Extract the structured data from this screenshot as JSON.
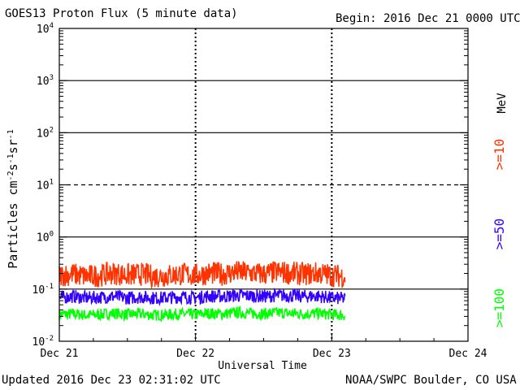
{
  "title": "GOES13 Proton Flux (5 minute data)",
  "begin_label": "Begin: 2016 Dec 21 0000 UTC",
  "updated_label": "Updated 2016 Dec 23 02:31:02 UTC",
  "credit_label": "NOAA/SWPC Boulder, CO USA",
  "colors": {
    "p10": "#ff3300",
    "p50": "#3300ff",
    "p100": "#00ff00",
    "axes": "#000000"
  },
  "chart_data": {
    "type": "line",
    "title": "GOES13 Proton Flux (5 minute data)",
    "xlabel": "Universal Time",
    "ylabel": "Particles cm-2s-1sr-1",
    "y_scale": "log",
    "ylim": [
      0.01,
      10000
    ],
    "x_range_days": [
      0,
      3
    ],
    "x_ticks": [
      {
        "value": 0,
        "label": "Dec 21"
      },
      {
        "value": 1,
        "label": "Dec 22"
      },
      {
        "value": 2,
        "label": "Dec 23"
      },
      {
        "value": 3,
        "label": "Dec 24"
      }
    ],
    "y_ticks": [
      {
        "value": 0.01,
        "base": "10",
        "exp": "-2"
      },
      {
        "value": 0.1,
        "base": "10",
        "exp": "-1"
      },
      {
        "value": 1,
        "base": "10",
        "exp": "0"
      },
      {
        "value": 10,
        "base": "10",
        "exp": "1"
      },
      {
        "value": 100,
        "base": "10",
        "exp": "2"
      },
      {
        "value": 1000,
        "base": "10",
        "exp": "3"
      },
      {
        "value": 10000,
        "base": "10",
        "exp": "4"
      }
    ],
    "threshold_lines": [
      {
        "value": 10,
        "style": "dashed"
      },
      {
        "value": 0.1,
        "style": "solid"
      },
      {
        "value": 1,
        "style": "solid"
      },
      {
        "value": 100,
        "style": "solid"
      },
      {
        "value": 1000,
        "style": "solid"
      }
    ],
    "legend_unit": "MeV",
    "legend_placement": "right",
    "series": [
      {
        "name": ">=10",
        "color": "#ff3300",
        "x": [
          0,
          0.1,
          0.2,
          0.3,
          0.4,
          0.5,
          0.6,
          0.7,
          0.8,
          0.9,
          1.0,
          1.1,
          1.2,
          1.3,
          1.4,
          1.5,
          1.6,
          1.7,
          1.8,
          1.9,
          2.0,
          2.1
        ],
        "values": [
          0.2,
          0.21,
          0.19,
          0.2,
          0.22,
          0.2,
          0.21,
          0.19,
          0.2,
          0.21,
          0.2,
          0.22,
          0.21,
          0.23,
          0.22,
          0.21,
          0.23,
          0.22,
          0.21,
          0.22,
          0.2,
          0.19
        ]
      },
      {
        "name": ">=50",
        "color": "#3300ff",
        "x": [
          0,
          0.1,
          0.2,
          0.3,
          0.4,
          0.5,
          0.6,
          0.7,
          0.8,
          0.9,
          1.0,
          1.1,
          1.2,
          1.3,
          1.4,
          1.5,
          1.6,
          1.7,
          1.8,
          1.9,
          2.0,
          2.1
        ],
        "values": [
          0.07,
          0.075,
          0.07,
          0.072,
          0.075,
          0.07,
          0.073,
          0.07,
          0.071,
          0.074,
          0.07,
          0.076,
          0.075,
          0.078,
          0.077,
          0.075,
          0.078,
          0.077,
          0.075,
          0.076,
          0.07,
          0.068
        ]
      },
      {
        "name": ">=100",
        "color": "#00ff00",
        "x": [
          0,
          0.1,
          0.2,
          0.3,
          0.4,
          0.5,
          0.6,
          0.7,
          0.8,
          0.9,
          1.0,
          1.1,
          1.2,
          1.3,
          1.4,
          1.5,
          1.6,
          1.7,
          1.8,
          1.9,
          2.0,
          2.1
        ],
        "values": [
          0.035,
          0.036,
          0.034,
          0.035,
          0.037,
          0.035,
          0.036,
          0.034,
          0.035,
          0.036,
          0.035,
          0.037,
          0.036,
          0.038,
          0.037,
          0.036,
          0.038,
          0.037,
          0.036,
          0.037,
          0.035,
          0.034
        ]
      }
    ]
  }
}
